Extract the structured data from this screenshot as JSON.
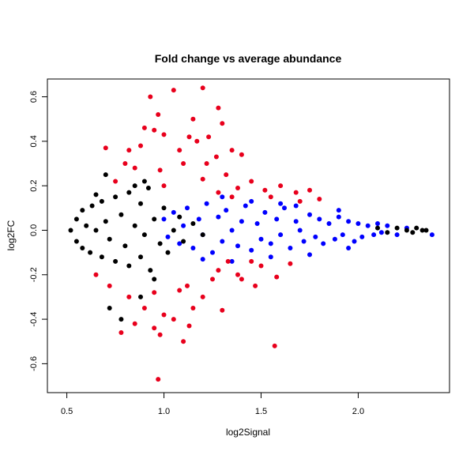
{
  "chart_data": {
    "type": "scatter",
    "title": "Fold change vs average abundance",
    "xlabel": "log2Signal",
    "ylabel": "log2FC",
    "xlim": [
      0.4,
      2.47
    ],
    "ylim": [
      -0.73,
      0.68
    ],
    "xticks": [
      0.5,
      1.0,
      1.5,
      2.0
    ],
    "xtick_labels": [
      "0.5",
      "1.0",
      "1.5",
      "2.0"
    ],
    "yticks": [
      -0.6,
      -0.4,
      -0.2,
      0.0,
      0.2,
      0.4,
      0.6
    ],
    "ytick_labels": [
      "-0.6",
      "-0.4",
      "-0.2",
      "0.0",
      "0.2",
      "0.4",
      "0.6"
    ],
    "grid": false,
    "legend": "none",
    "colors": {
      "black": "#000000",
      "blue": "#0000ff",
      "red": "#e8001c"
    },
    "series": [
      {
        "color": "blue",
        "points": [
          [
            1.0,
            0.05
          ],
          [
            1.02,
            -0.03
          ],
          [
            1.05,
            0.08
          ],
          [
            1.08,
            -0.06
          ],
          [
            1.1,
            0.02
          ],
          [
            1.12,
            0.1
          ],
          [
            1.15,
            -0.08
          ],
          [
            1.18,
            0.05
          ],
          [
            1.2,
            -0.02
          ],
          [
            1.22,
            0.12
          ],
          [
            1.25,
            -0.1
          ],
          [
            1.28,
            0.06
          ],
          [
            1.3,
            -0.05
          ],
          [
            1.32,
            0.09
          ],
          [
            1.35,
            0.0
          ],
          [
            1.38,
            -0.07
          ],
          [
            1.4,
            0.04
          ],
          [
            1.42,
            0.11
          ],
          [
            1.45,
            -0.09
          ],
          [
            1.48,
            0.03
          ],
          [
            1.5,
            -0.04
          ],
          [
            1.52,
            0.08
          ],
          [
            1.55,
            -0.06
          ],
          [
            1.58,
            0.05
          ],
          [
            1.6,
            -0.02
          ],
          [
            1.62,
            0.1
          ],
          [
            1.65,
            -0.08
          ],
          [
            1.68,
            0.04
          ],
          [
            1.7,
            0.0
          ],
          [
            1.72,
            -0.05
          ],
          [
            1.75,
            0.07
          ],
          [
            1.78,
            -0.03
          ],
          [
            1.8,
            0.05
          ],
          [
            1.82,
            -0.06
          ],
          [
            1.85,
            0.03
          ],
          [
            1.88,
            -0.04
          ],
          [
            1.9,
            0.06
          ],
          [
            1.92,
            -0.02
          ],
          [
            1.95,
            0.04
          ],
          [
            1.98,
            -0.05
          ],
          [
            2.0,
            0.03
          ],
          [
            2.02,
            -0.03
          ],
          [
            2.05,
            0.02
          ],
          [
            2.08,
            -0.02
          ],
          [
            2.1,
            0.03
          ],
          [
            2.12,
            -0.01
          ],
          [
            2.15,
            0.02
          ],
          [
            2.2,
            -0.02
          ],
          [
            2.25,
            0.01
          ],
          [
            2.38,
            -0.02
          ],
          [
            1.3,
            0.15
          ],
          [
            1.45,
            0.13
          ],
          [
            1.6,
            0.12
          ],
          [
            1.75,
            -0.11
          ],
          [
            1.55,
            -0.12
          ],
          [
            1.35,
            -0.14
          ],
          [
            1.2,
            -0.13
          ],
          [
            1.9,
            0.09
          ],
          [
            1.95,
            -0.08
          ],
          [
            1.68,
            0.11
          ]
        ]
      },
      {
        "color": "black",
        "points": [
          [
            0.52,
            0.0
          ],
          [
            0.55,
            0.05
          ],
          [
            0.55,
            -0.05
          ],
          [
            0.58,
            0.09
          ],
          [
            0.58,
            -0.08
          ],
          [
            0.6,
            0.02
          ],
          [
            0.62,
            -0.1
          ],
          [
            0.63,
            0.11
          ],
          [
            0.65,
            0.0
          ],
          [
            0.68,
            0.13
          ],
          [
            0.68,
            -0.12
          ],
          [
            0.7,
            0.04
          ],
          [
            0.72,
            -0.04
          ],
          [
            0.75,
            0.15
          ],
          [
            0.75,
            -0.14
          ],
          [
            0.78,
            0.07
          ],
          [
            0.8,
            -0.07
          ],
          [
            0.82,
            0.17
          ],
          [
            0.82,
            -0.16
          ],
          [
            0.85,
            0.02
          ],
          [
            0.88,
            0.12
          ],
          [
            0.88,
            -0.12
          ],
          [
            0.9,
            -0.02
          ],
          [
            0.92,
            0.19
          ],
          [
            0.93,
            -0.18
          ],
          [
            0.95,
            0.05
          ],
          [
            0.98,
            -0.06
          ],
          [
            1.0,
            0.1
          ],
          [
            1.02,
            -0.1
          ],
          [
            1.05,
            0.0
          ],
          [
            1.08,
            0.06
          ],
          [
            1.1,
            -0.05
          ],
          [
            1.15,
            0.03
          ],
          [
            1.2,
            -0.02
          ],
          [
            0.72,
            -0.35
          ],
          [
            0.78,
            -0.4
          ],
          [
            0.9,
            0.22
          ],
          [
            0.88,
            -0.3
          ],
          [
            0.7,
            0.25
          ],
          [
            0.65,
            0.16
          ],
          [
            2.1,
            0.01
          ],
          [
            2.15,
            -0.01
          ],
          [
            2.2,
            0.01
          ],
          [
            2.25,
            0.0
          ],
          [
            2.28,
            -0.01
          ],
          [
            2.3,
            0.01
          ],
          [
            2.33,
            0.0
          ],
          [
            2.35,
            0.0
          ],
          [
            0.95,
            -0.22
          ],
          [
            0.85,
            0.2
          ]
        ]
      },
      {
        "color": "red",
        "points": [
          [
            0.93,
            0.6
          ],
          [
            1.05,
            0.63
          ],
          [
            1.2,
            0.64
          ],
          [
            1.28,
            0.55
          ],
          [
            1.3,
            0.48
          ],
          [
            0.97,
            0.52
          ],
          [
            1.15,
            0.5
          ],
          [
            0.9,
            0.46
          ],
          [
            1.0,
            0.43
          ],
          [
            0.95,
            0.45
          ],
          [
            1.13,
            0.42
          ],
          [
            1.23,
            0.42
          ],
          [
            1.35,
            0.36
          ],
          [
            0.7,
            0.37
          ],
          [
            0.82,
            0.36
          ],
          [
            0.88,
            0.38
          ],
          [
            1.08,
            0.36
          ],
          [
            1.17,
            0.4
          ],
          [
            1.4,
            0.34
          ],
          [
            1.27,
            0.33
          ],
          [
            0.8,
            0.3
          ],
          [
            0.85,
            0.28
          ],
          [
            0.98,
            0.27
          ],
          [
            1.1,
            0.3
          ],
          [
            1.22,
            0.3
          ],
          [
            1.32,
            0.25
          ],
          [
            1.45,
            0.22
          ],
          [
            1.6,
            0.2
          ],
          [
            1.75,
            0.18
          ],
          [
            1.68,
            0.17
          ],
          [
            0.75,
            0.22
          ],
          [
            1.0,
            0.2
          ],
          [
            1.2,
            0.23
          ],
          [
            1.38,
            0.19
          ],
          [
            1.52,
            0.18
          ],
          [
            1.35,
            0.15
          ],
          [
            1.55,
            0.15
          ],
          [
            1.8,
            0.14
          ],
          [
            1.7,
            0.13
          ],
          [
            1.28,
            0.17
          ],
          [
            0.97,
            -0.67
          ],
          [
            1.57,
            -0.52
          ],
          [
            1.1,
            -0.5
          ],
          [
            0.98,
            -0.47
          ],
          [
            1.13,
            -0.43
          ],
          [
            0.95,
            -0.44
          ],
          [
            0.78,
            -0.46
          ],
          [
            0.85,
            -0.42
          ],
          [
            1.0,
            -0.38
          ],
          [
            1.05,
            -0.4
          ],
          [
            0.9,
            -0.35
          ],
          [
            1.15,
            -0.35
          ],
          [
            1.3,
            -0.36
          ],
          [
            0.82,
            -0.3
          ],
          [
            0.95,
            -0.28
          ],
          [
            1.08,
            -0.27
          ],
          [
            1.2,
            -0.3
          ],
          [
            0.72,
            -0.25
          ],
          [
            1.12,
            -0.25
          ],
          [
            1.25,
            -0.22
          ],
          [
            1.4,
            -0.22
          ],
          [
            1.58,
            -0.21
          ],
          [
            1.47,
            -0.25
          ],
          [
            1.38,
            -0.2
          ],
          [
            1.28,
            -0.18
          ],
          [
            1.5,
            -0.16
          ],
          [
            1.65,
            -0.15
          ],
          [
            1.45,
            -0.14
          ],
          [
            1.33,
            -0.14
          ],
          [
            0.65,
            -0.2
          ]
        ]
      }
    ]
  }
}
